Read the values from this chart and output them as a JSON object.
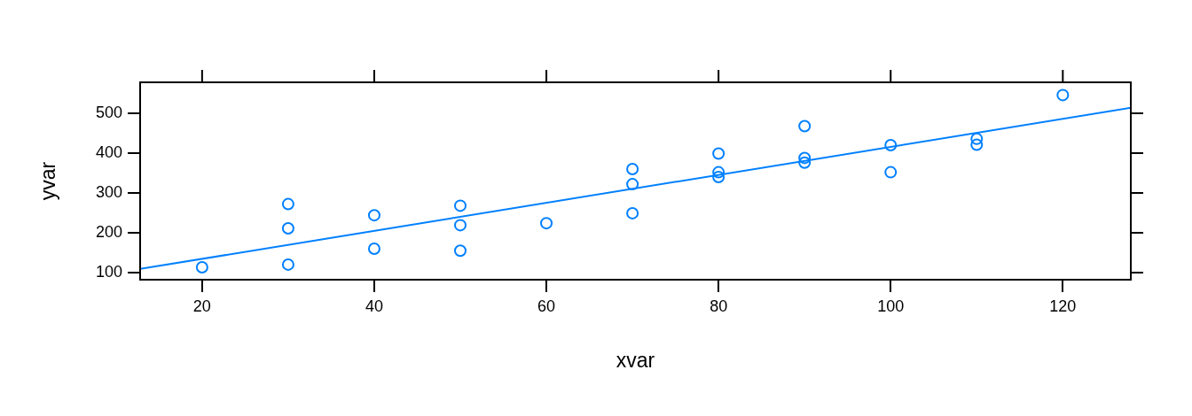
{
  "chart_data": {
    "type": "scatter",
    "xlabel": "xvar",
    "ylabel": "yvar",
    "xlim": [
      12.8,
      127.9
    ],
    "ylim": [
      82,
      578
    ],
    "xticks": [
      20,
      40,
      60,
      80,
      100,
      120
    ],
    "yticks": [
      100,
      200,
      300,
      400,
      500
    ],
    "grid": false,
    "legend": false,
    "marker": "circle",
    "series": [
      {
        "type": "scatter",
        "color": "#0080ff",
        "x": [
          20,
          30,
          30,
          30,
          40,
          40,
          50,
          50,
          50,
          60,
          70,
          70,
          70,
          80,
          80,
          80,
          90,
          90,
          90,
          100,
          100,
          110,
          110,
          120
        ],
        "values": [
          113,
          272,
          211,
          120,
          244,
          160,
          268,
          219,
          155,
          224,
          360,
          322,
          249,
          399,
          352,
          340,
          468,
          388,
          376,
          420,
          352,
          436,
          421,
          546
        ]
      },
      {
        "type": "line",
        "marker": "none",
        "color": "#0080ff",
        "x": [
          12.8,
          127.9
        ],
        "values": [
          109,
          514
        ]
      }
    ]
  }
}
